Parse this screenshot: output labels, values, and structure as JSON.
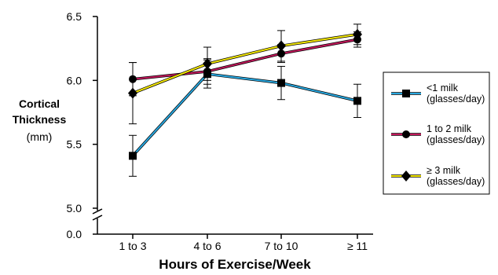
{
  "chart_data": {
    "type": "line",
    "xlabel": "Hours of Exercise/Week",
    "ylabel": [
      "Cortical",
      "Thickness"
    ],
    "ylabel_unit": "(mm)",
    "categories": [
      "1 to 3",
      "4 to 6",
      "7 to 10",
      "≥ 11"
    ],
    "yticks": [
      "6.5",
      "6.0",
      "5.5",
      "5.0",
      "0.0"
    ],
    "ylim": [
      5.0,
      6.5
    ],
    "axis_break": true,
    "legend_position": "right",
    "series": [
      {
        "name": [
          "<1 milk",
          "(glasses/day)"
        ],
        "color": "#29a8e0",
        "marker": "square",
        "values": [
          5.41,
          6.05,
          5.98,
          5.84
        ],
        "errors": [
          0.16,
          0.11,
          0.13,
          0.13
        ]
      },
      {
        "name": [
          "1 to 2 milk",
          "(glasses/day)"
        ],
        "color": "#c2185b",
        "marker": "circle",
        "values": [
          6.01,
          6.07,
          6.21,
          6.32
        ],
        "errors": [
          0.13,
          0.1,
          0.07,
          0.06
        ]
      },
      {
        "name": [
          "≥ 3 milk",
          "(glasses/day)"
        ],
        "color": "#f2e600",
        "marker": "diamond",
        "values": [
          5.9,
          6.13,
          6.27,
          6.36
        ],
        "errors": [
          0.24,
          0.13,
          0.12,
          0.08
        ]
      }
    ]
  }
}
